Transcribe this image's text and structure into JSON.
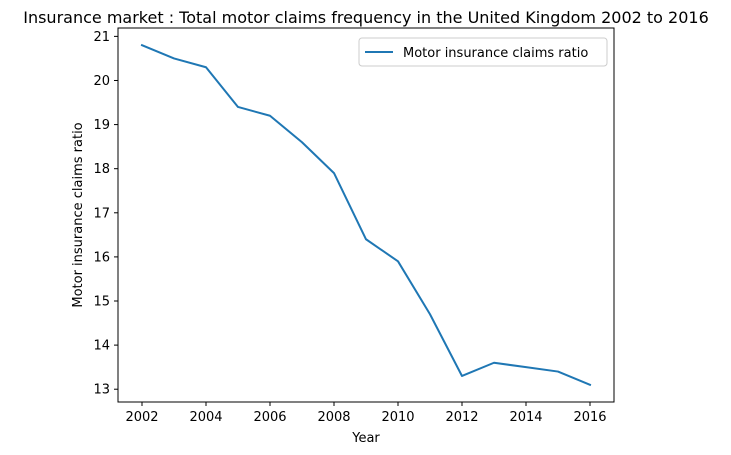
{
  "chart_data": {
    "type": "line",
    "title": "Insurance market : Total motor claims frequency in the United Kingdom 2002 to 2016",
    "xlabel": "Year",
    "ylabel": "Motor insurance claims ratio",
    "xlim": [
      2001.25,
      2016.75
    ],
    "ylim": [
      12.71,
      21.19
    ],
    "xticks": [
      2002,
      2004,
      2006,
      2008,
      2010,
      2012,
      2014,
      2016
    ],
    "yticks": [
      13,
      14,
      15,
      16,
      17,
      18,
      19,
      20,
      21
    ],
    "grid": false,
    "legend_position": "top-right",
    "series": [
      {
        "name": "Motor insurance claims ratio",
        "color": "#1f77b4",
        "x": [
          2002,
          2003,
          2004,
          2005,
          2006,
          2007,
          2008,
          2009,
          2010,
          2011,
          2012,
          2013,
          2014,
          2015,
          2016
        ],
        "values": [
          20.8,
          20.5,
          20.3,
          19.4,
          19.2,
          18.6,
          17.9,
          16.4,
          15.9,
          14.7,
          13.3,
          13.6,
          13.5,
          13.4,
          13.1
        ]
      }
    ]
  }
}
